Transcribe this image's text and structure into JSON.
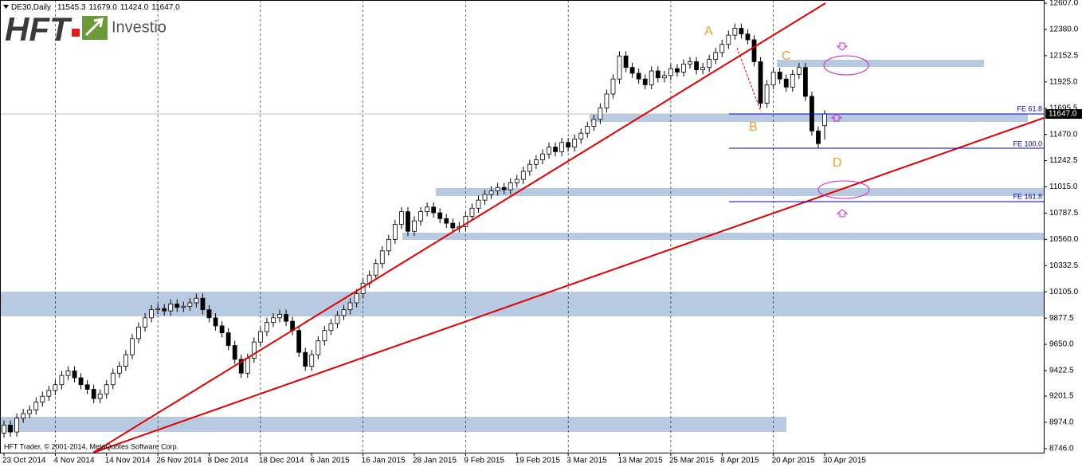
{
  "chart_data": {
    "type": "candlestick",
    "header": {
      "symbol": "DE30,Daily",
      "ohlc": [
        "11545.3",
        "11679.0",
        "11424.0",
        "11647.0"
      ]
    },
    "logo": {
      "brand": "HFT",
      "name": "Investio"
    },
    "copyright": "HFT Trader, © 2001-2014, MetaQuotes Software Corp.",
    "pattern_labels": [
      "A",
      "B",
      "C",
      "D"
    ],
    "fib_labels": [
      "FE 61.8",
      "FE 100.0",
      "FE 161.8"
    ],
    "current_price": {
      "value": 11647,
      "label": "11647.0"
    },
    "ylim": [
      8711,
      12635
    ],
    "yticks": [
      {
        "value": 12607,
        "label": "12607.0"
      },
      {
        "value": 12380,
        "label": "12380.0"
      },
      12152.5,
      {
        "value": 11925,
        "label": "11925.0"
      },
      11695.5,
      {
        "value": 11470,
        "label": "11470.0"
      },
      11242.5,
      {
        "value": 11015,
        "label": "11015.0"
      },
      10787.5,
      {
        "value": 10560,
        "label": "10560.0"
      },
      10332.5,
      {
        "value": 10105,
        "label": "10105.0"
      },
      9877.5,
      {
        "value": 9650,
        "label": "9650.0"
      },
      9422.5,
      9201.5,
      {
        "value": 8974,
        "label": "8974.0"
      },
      {
        "value": 8746,
        "label": "8746.0"
      }
    ],
    "categories": [
      "23 Oct 2014",
      null,
      null,
      null,
      null,
      null,
      null,
      null,
      "4 Nov 2014",
      null,
      null,
      null,
      null,
      null,
      null,
      null,
      "14 Nov 2014",
      null,
      null,
      null,
      null,
      null,
      null,
      null,
      "26 Nov 2014",
      null,
      null,
      null,
      null,
      null,
      null,
      null,
      "8 Dec 2014",
      null,
      null,
      null,
      null,
      null,
      null,
      null,
      "18 Dec 2014",
      null,
      null,
      null,
      null,
      null,
      null,
      null,
      "6 Jan 2015",
      null,
      null,
      null,
      null,
      null,
      null,
      null,
      "16 Jan 2015",
      null,
      null,
      null,
      null,
      null,
      null,
      null,
      "28 Jan 2015",
      null,
      null,
      null,
      null,
      null,
      null,
      null,
      "9 Feb 2015",
      null,
      null,
      null,
      null,
      null,
      null,
      null,
      "19 Feb 2015",
      null,
      null,
      null,
      null,
      null,
      null,
      null,
      "3 Mar 2015",
      null,
      null,
      null,
      null,
      null,
      null,
      null,
      "13 Mar 2015",
      null,
      null,
      null,
      null,
      null,
      null,
      null,
      "25 Mar 2015",
      null,
      null,
      null,
      null,
      null,
      null,
      null,
      "8 Apr 2015",
      null,
      null,
      null,
      null,
      null,
      null,
      null,
      "20 Apr 2015",
      null,
      null,
      null,
      null,
      null,
      null,
      null,
      "30 Apr 2015"
    ],
    "open": [
      8880,
      8950,
      8890,
      9010,
      9050,
      9080,
      9150,
      9200,
      9250,
      9300,
      9380,
      9420,
      9360,
      9300,
      9260,
      9180,
      9220,
      9300,
      9400,
      9460,
      9560,
      9700,
      9800,
      9880,
      9950,
      9960,
      9940,
      10000,
      9970,
      9980,
      10010,
      10050,
      9950,
      9880,
      9810,
      9750,
      9640,
      9520,
      9400,
      9530,
      9670,
      9760,
      9840,
      9880,
      9910,
      9850,
      9770,
      9580,
      9460,
      9560,
      9680,
      9770,
      9830,
      9900,
      9950,
      10010,
      10090,
      10180,
      10250,
      10350,
      10460,
      10560,
      10690,
      10800,
      10630,
      10720,
      10800,
      10840,
      10790,
      10740,
      10700,
      10660,
      10670,
      10760,
      10830,
      10900,
      10950,
      10980,
      11010,
      10990,
      11050,
      11080,
      11150,
      11210,
      11250,
      11300,
      11360,
      11320,
      11400,
      11360,
      11430,
      11480,
      11540,
      11600,
      11700,
      11820,
      11950,
      12150,
      12050,
      12000,
      11950,
      11900,
      12020,
      11960,
      11980,
      12040,
      12010,
      12080,
      12100,
      12030,
      12050,
      12120,
      12180,
      12250,
      12330,
      12390,
      12340,
      12290,
      12100,
      11740,
      11900,
      12010,
      11950,
      11880,
      11990,
      12050,
      11800,
      11500,
      11545.3
    ],
    "high": [
      8990,
      8990,
      9050,
      9090,
      9120,
      9190,
      9240,
      9290,
      9340,
      9420,
      9460,
      9460,
      9400,
      9340,
      9300,
      9260,
      9340,
      9440,
      9500,
      9600,
      9740,
      9840,
      9920,
      9990,
      10000,
      10000,
      10040,
      10040,
      10020,
      10050,
      10090,
      10090,
      9990,
      9920,
      9850,
      9790,
      9680,
      9560,
      9570,
      9710,
      9800,
      9880,
      9920,
      9950,
      9950,
      9890,
      9810,
      9620,
      9600,
      9720,
      9810,
      9870,
      9940,
      9990,
      10050,
      10130,
      10220,
      10290,
      10390,
      10500,
      10600,
      10730,
      10840,
      10840,
      10760,
      10840,
      10880,
      10880,
      10830,
      10780,
      10740,
      10710,
      10800,
      10870,
      10940,
      10990,
      11020,
      11050,
      11050,
      11090,
      11120,
      11190,
      11250,
      11290,
      11340,
      11400,
      11400,
      11440,
      11440,
      11470,
      11520,
      11580,
      11640,
      11740,
      11860,
      11990,
      12190,
      12190,
      12090,
      12040,
      11990,
      12060,
      12060,
      12020,
      12080,
      12080,
      12120,
      12140,
      12140,
      12090,
      12160,
      12220,
      12290,
      12370,
      12430,
      12430,
      12380,
      12330,
      12140,
      11940,
      12050,
      12050,
      11990,
      12030,
      12090,
      12090,
      11840,
      11540,
      11679
    ],
    "low": [
      8840,
      8850,
      8850,
      8970,
      9010,
      9040,
      9110,
      9160,
      9210,
      9260,
      9340,
      9320,
      9260,
      9220,
      9140,
      9140,
      9180,
      9260,
      9360,
      9420,
      9520,
      9660,
      9760,
      9840,
      9910,
      9900,
      9900,
      9930,
      9930,
      9940,
      9970,
      9910,
      9840,
      9770,
      9710,
      9600,
      9480,
      9360,
      9360,
      9490,
      9630,
      9720,
      9800,
      9840,
      9810,
      9730,
      9540,
      9420,
      9420,
      9520,
      9640,
      9730,
      9790,
      9860,
      9910,
      9970,
      10050,
      10140,
      10210,
      10310,
      10420,
      10520,
      10650,
      10590,
      10590,
      10680,
      10760,
      10750,
      10700,
      10660,
      10620,
      10620,
      10630,
      10720,
      10790,
      10860,
      10910,
      10940,
      10950,
      10950,
      11010,
      11040,
      11110,
      11170,
      11210,
      11260,
      11280,
      11280,
      11320,
      11320,
      11390,
      11440,
      11500,
      11560,
      11660,
      11780,
      11910,
      12010,
      11960,
      11910,
      11860,
      11860,
      11920,
      11920,
      11940,
      11970,
      11970,
      12040,
      11990,
      11990,
      12010,
      12080,
      12140,
      12210,
      12290,
      12300,
      12250,
      12060,
      11700,
      11700,
      11860,
      11910,
      11840,
      11840,
      11950,
      11760,
      11460,
      11350,
      11424
    ],
    "close": [
      8950,
      8890,
      9010,
      9050,
      9080,
      9150,
      9200,
      9250,
      9300,
      9380,
      9420,
      9360,
      9300,
      9260,
      9180,
      9220,
      9300,
      9400,
      9460,
      9560,
      9700,
      9800,
      9880,
      9950,
      9960,
      9940,
      10000,
      9970,
      9980,
      10010,
      10050,
      9950,
      9880,
      9810,
      9750,
      9640,
      9520,
      9400,
      9530,
      9670,
      9760,
      9840,
      9880,
      9910,
      9850,
      9770,
      9580,
      9460,
      9560,
      9680,
      9770,
      9830,
      9900,
      9950,
      10010,
      10090,
      10180,
      10250,
      10350,
      10460,
      10560,
      10690,
      10800,
      10630,
      10720,
      10800,
      10840,
      10790,
      10740,
      10700,
      10660,
      10670,
      10760,
      10830,
      10900,
      10950,
      10980,
      11010,
      10990,
      11050,
      11080,
      11150,
      11210,
      11250,
      11300,
      11360,
      11320,
      11400,
      11360,
      11430,
      11480,
      11540,
      11600,
      11700,
      11820,
      11950,
      12150,
      12050,
      12000,
      11950,
      11900,
      12020,
      11960,
      11980,
      12040,
      12010,
      12080,
      12100,
      12030,
      12050,
      12120,
      12180,
      12250,
      12330,
      12390,
      12340,
      12290,
      12100,
      11740,
      11900,
      12010,
      11950,
      11880,
      11990,
      12050,
      11800,
      11500,
      11390,
      11647
    ]
  }
}
